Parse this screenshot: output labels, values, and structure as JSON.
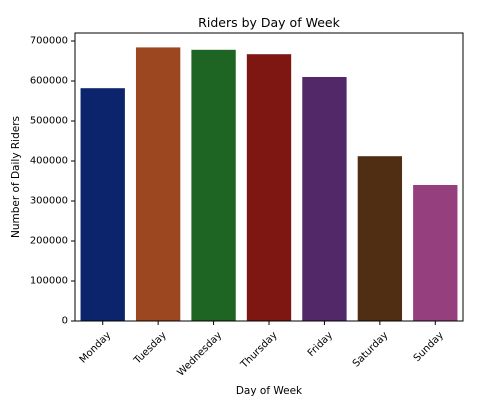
{
  "chart_data": {
    "type": "bar",
    "title": "Riders by Day of Week",
    "xlabel": "Day of Week",
    "ylabel": "Number of Daily Riders",
    "categories": [
      "Monday",
      "Tuesday",
      "Wednesday",
      "Thursday",
      "Friday",
      "Saturday",
      "Sunday"
    ],
    "values": [
      582000,
      684000,
      678000,
      667000,
      610000,
      412000,
      340000
    ],
    "colors": [
      "#0c246c",
      "#9c4720",
      "#1e6422",
      "#7e1612",
      "#532869",
      "#4f2e14",
      "#963f7e"
    ],
    "ylim": [
      0,
      720000
    ],
    "yticks": [
      0,
      100000,
      200000,
      300000,
      400000,
      500000,
      600000,
      700000
    ],
    "ytick_labels": [
      "0",
      "100000",
      "200000",
      "300000",
      "400000",
      "500000",
      "600000",
      "700000"
    ],
    "grid": false,
    "legend": "none"
  }
}
